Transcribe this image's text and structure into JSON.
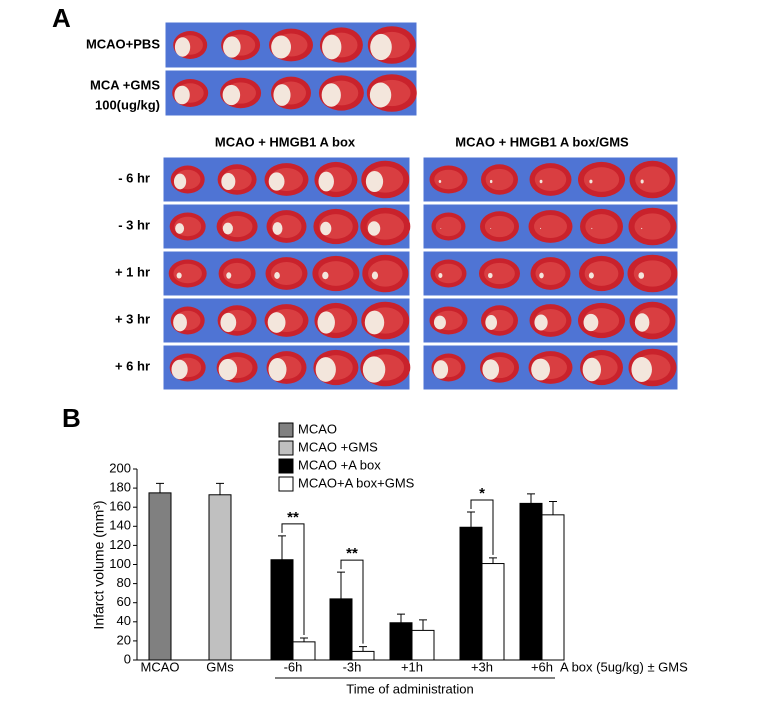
{
  "panel_a": {
    "label": "A",
    "top_row_labels": [
      [
        "MCAO+PBS"
      ],
      [
        "MCA +GMS",
        "100(ug/kg)"
      ]
    ],
    "column_headers": [
      "MCAO + HMGB1 A box",
      "MCAO + HMGB1 A box/GMS"
    ],
    "row_labels": [
      "- 6 hr",
      "- 3 hr",
      "+ 1 hr",
      "+ 3 hr",
      "+ 6 hr"
    ]
  },
  "panel_b_label": "B",
  "chart_data": {
    "type": "bar",
    "ylabel": "Infarct volume (mm³)",
    "xlabel": "Time of administration",
    "x_note": "A box (5ug/kg) ± GMS",
    "categories": [
      "MCAO",
      "GMs",
      "-6h",
      "-3h",
      "+1h",
      "+3h",
      "+6h"
    ],
    "series": [
      {
        "name": "MCAO",
        "color": "#808080",
        "values": [
          175,
          null,
          null,
          null,
          null,
          null,
          null
        ],
        "errors": [
          10,
          null,
          null,
          null,
          null,
          null,
          null
        ]
      },
      {
        "name": "MCAO +GMS",
        "color": "#c0c0c0",
        "values": [
          null,
          173,
          null,
          null,
          null,
          null,
          null
        ],
        "errors": [
          null,
          12,
          null,
          null,
          null,
          null,
          null
        ]
      },
      {
        "name": "MCAO +A box",
        "color": "#000000",
        "values": [
          null,
          null,
          105,
          64,
          39,
          139,
          164
        ],
        "errors": [
          null,
          null,
          25,
          28,
          9,
          16,
          10
        ]
      },
      {
        "name": "MCAO+A box+GMS",
        "color": "#ffffff",
        "values": [
          null,
          null,
          19,
          9,
          31,
          101,
          152
        ],
        "errors": [
          null,
          null,
          4,
          5,
          11,
          6,
          14
        ]
      }
    ],
    "significance": [
      null,
      null,
      "**",
      "**",
      null,
      "*",
      null
    ],
    "ylim": [
      0,
      200
    ],
    "yticks": [
      0,
      20,
      40,
      60,
      80,
      100,
      120,
      140,
      160,
      180,
      200
    ]
  }
}
